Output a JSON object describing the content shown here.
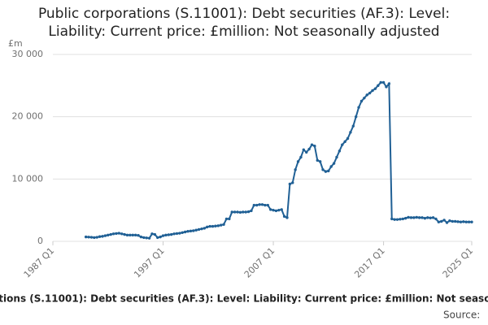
{
  "chart_data": {
    "type": "line",
    "title": "Public corporations (S.11001): Debt securities (AF.3): Level: Liability: Current price: £million: Not seasonally adjusted",
    "y_unit": "£m",
    "source": "Source:",
    "xlim": [
      "1987 Q1",
      "2025 Q1"
    ],
    "xticks": [
      "1987 Q1",
      "1997 Q1",
      "2007 Q1",
      "2017 Q1",
      "2025 Q1"
    ],
    "ylim": [
      0,
      30000
    ],
    "yticks": [
      0,
      {
        "value": 10000,
        "label": "10 000"
      },
      {
        "value": 20000,
        "label": "20 000"
      },
      {
        "value": 30000,
        "label": "30 000"
      }
    ],
    "grid": true,
    "x": [
      "1990 Q1",
      "1990 Q2",
      "1990 Q3",
      "1990 Q4",
      "1991 Q1",
      "1991 Q2",
      "1991 Q3",
      "1991 Q4",
      "1992 Q1",
      "1992 Q2",
      "1992 Q3",
      "1992 Q4",
      "1993 Q1",
      "1993 Q2",
      "1993 Q3",
      "1993 Q4",
      "1994 Q1",
      "1994 Q2",
      "1994 Q3",
      "1994 Q4",
      "1995 Q1",
      "1995 Q2",
      "1995 Q3",
      "1995 Q4",
      "1996 Q1",
      "1996 Q2",
      "1996 Q3",
      "1996 Q4",
      "1997 Q1",
      "1997 Q2",
      "1997 Q3",
      "1997 Q4",
      "1998 Q1",
      "1998 Q2",
      "1998 Q3",
      "1998 Q4",
      "1999 Q1",
      "1999 Q2",
      "1999 Q3",
      "1999 Q4",
      "2000 Q1",
      "2000 Q2",
      "2000 Q3",
      "2000 Q4",
      "2001 Q1",
      "2001 Q2",
      "2001 Q3",
      "2001 Q4",
      "2002 Q1",
      "2002 Q2",
      "2002 Q3",
      "2002 Q4",
      "2003 Q1",
      "2003 Q2",
      "2003 Q3",
      "2003 Q4",
      "2004 Q1",
      "2004 Q2",
      "2004 Q3",
      "2004 Q4",
      "2005 Q1",
      "2005 Q2",
      "2005 Q3",
      "2005 Q4",
      "2006 Q1",
      "2006 Q2",
      "2006 Q3",
      "2006 Q4",
      "2007 Q1",
      "2007 Q2",
      "2007 Q3",
      "2007 Q4",
      "2008 Q1",
      "2008 Q2",
      "2008 Q3",
      "2008 Q4",
      "2009 Q1",
      "2009 Q2",
      "2009 Q3",
      "2009 Q4",
      "2010 Q1",
      "2010 Q2",
      "2010 Q3",
      "2010 Q4",
      "2011 Q1",
      "2011 Q2",
      "2011 Q3",
      "2011 Q4",
      "2012 Q1",
      "2012 Q2",
      "2012 Q3",
      "2012 Q4",
      "2013 Q1",
      "2013 Q2",
      "2013 Q3",
      "2013 Q4",
      "2014 Q1",
      "2014 Q2",
      "2014 Q3",
      "2014 Q4",
      "2015 Q1",
      "2015 Q2",
      "2015 Q3",
      "2015 Q4",
      "2016 Q1",
      "2016 Q2",
      "2016 Q3",
      "2016 Q4",
      "2017 Q1",
      "2017 Q2",
      "2017 Q3",
      "2017 Q4",
      "2018 Q1",
      "2018 Q2",
      "2018 Q3",
      "2018 Q4",
      "2019 Q1",
      "2019 Q2",
      "2019 Q3",
      "2019 Q4",
      "2020 Q1",
      "2020 Q2",
      "2020 Q3",
      "2020 Q4",
      "2021 Q1",
      "2021 Q2",
      "2021 Q3",
      "2021 Q4",
      "2022 Q1",
      "2022 Q2",
      "2022 Q3",
      "2022 Q4",
      "2023 Q1",
      "2023 Q2",
      "2023 Q3",
      "2023 Q4",
      "2024 Q1",
      "2024 Q2",
      "2024 Q3",
      "2024 Q4",
      "2025 Q1"
    ],
    "color": "#206095",
    "values": [
      700,
      680,
      650,
      600,
      650,
      750,
      800,
      900,
      1000,
      1100,
      1200,
      1250,
      1300,
      1200,
      1100,
      1000,
      1000,
      1000,
      1000,
      950,
      700,
      600,
      550,
      500,
      1200,
      1100,
      600,
      700,
      900,
      1000,
      1050,
      1100,
      1200,
      1250,
      1300,
      1400,
      1500,
      1600,
      1650,
      1700,
      1800,
      1900,
      2000,
      2100,
      2300,
      2400,
      2400,
      2450,
      2500,
      2600,
      2700,
      3600,
      3600,
      4700,
      4700,
      4700,
      4650,
      4700,
      4700,
      4750,
      4900,
      5800,
      5800,
      5900,
      5900,
      5800,
      5800,
      5100,
      5000,
      4900,
      5000,
      5100,
      4000,
      3800,
      9200,
      9400,
      11500,
      12800,
      13500,
      14700,
      14300,
      14800,
      15500,
      15300,
      13000,
      12800,
      11500,
      11200,
      11300,
      12000,
      12500,
      13500,
      14500,
      15500,
      16000,
      16500,
      17500,
      18500,
      20000,
      21500,
      22500,
      23000,
      23500,
      23800,
      24200,
      24500,
      25000,
      25500,
      25500,
      24800,
      25300,
      3600,
      3500,
      3500,
      3550,
      3600,
      3700,
      3850,
      3800,
      3800,
      3850,
      3800,
      3800,
      3700,
      3800,
      3750,
      3800,
      3600,
      3100,
      3200,
      3400,
      3000,
      3300,
      3200,
      3200,
      3150,
      3100,
      3150,
      3100,
      3100,
      3100
    ]
  }
}
